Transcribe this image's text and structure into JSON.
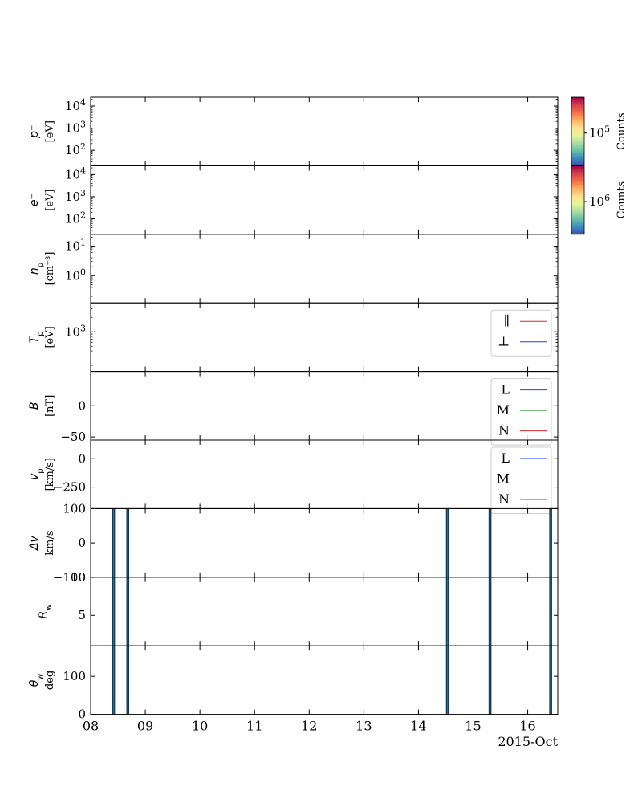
{
  "chart_data": {
    "type": "stacked-timeseries",
    "x_axis": {
      "ticks": [
        "08",
        "09",
        "10",
        "11",
        "12",
        "13",
        "14",
        "15",
        "16"
      ],
      "tick_days": [
        8,
        9,
        10,
        11,
        12,
        13,
        14,
        15,
        16
      ],
      "range_days": [
        8,
        16.55
      ],
      "date_label": "2015-Oct"
    },
    "panels": [
      {
        "id": "p",
        "ylabel": "p⁺",
        "yunit": "[eV]",
        "scale": "log",
        "ylim": [
          20,
          25000
        ],
        "ticks": [
          {
            "v": 100,
            "b": "10",
            "e": "2"
          },
          {
            "v": 1000,
            "b": "10",
            "e": "3"
          },
          {
            "v": 10000,
            "b": "10",
            "e": "4"
          }
        ],
        "colorbar": {
          "label": "Counts",
          "ticks": [
            {
              "b": "10",
              "e": "5"
            }
          ]
        }
      },
      {
        "id": "e",
        "ylabel": "e⁻",
        "yunit": "[eV]",
        "scale": "log",
        "ylim": [
          20,
          25000
        ],
        "ticks": [
          {
            "v": 100,
            "b": "10",
            "e": "2"
          },
          {
            "v": 1000,
            "b": "10",
            "e": "3"
          },
          {
            "v": 10000,
            "b": "10",
            "e": "4"
          }
        ],
        "colorbar": {
          "label": "Counts",
          "ticks": [
            {
              "b": "10",
              "e": "6"
            }
          ]
        }
      },
      {
        "id": "n",
        "ylabel": "n",
        "ysub": "p",
        "yunit": "[cm⁻³]",
        "scale": "log",
        "ylim": [
          0.12,
          25
        ],
        "ticks": [
          {
            "v": 1,
            "b": "10",
            "e": "0"
          },
          {
            "v": 10,
            "b": "10",
            "e": "1"
          }
        ]
      },
      {
        "id": "T",
        "ylabel": "T",
        "ysub": "p",
        "yunit": "[eV]",
        "scale": "log",
        "ylim": [
          150,
          4000
        ],
        "ticks": [
          {
            "v": 1000,
            "b": "10",
            "e": "3"
          }
        ],
        "legend": [
          {
            "label": "∥",
            "color": "#d62728"
          },
          {
            "label": "⊥",
            "color": "#1f3cff"
          }
        ]
      },
      {
        "id": "B",
        "ylabel": "B",
        "yunit": "[nT]",
        "scale": "linear",
        "ylim": [
          -55,
          55
        ],
        "ticks": [
          {
            "v": 0,
            "t": "0"
          },
          {
            "v": -50,
            "t": "−50"
          }
        ],
        "legend": [
          {
            "label": "L",
            "color": "#1f3cff"
          },
          {
            "label": "M",
            "color": "#2ca02c"
          },
          {
            "label": "N",
            "color": "#d62728"
          }
        ]
      },
      {
        "id": "v",
        "ylabel": "v",
        "ysub": "p",
        "yunit": "[km/s]",
        "scale": "linear",
        "ylim": [
          -440,
          165
        ],
        "ticks": [
          {
            "v": 0,
            "t": "0"
          },
          {
            "v": -250,
            "t": "−250"
          }
        ],
        "legend": [
          {
            "label": "L",
            "color": "#1f3cff"
          },
          {
            "label": "M",
            "color": "#2ca02c"
          },
          {
            "label": "N",
            "color": "#d62728"
          }
        ]
      },
      {
        "id": "dv",
        "ylabel": "Δv",
        "yunit": "km/s",
        "scale": "linear",
        "ylim": [
          -100,
          100
        ],
        "ticks": [
          {
            "v": 100,
            "t": "100"
          },
          {
            "v": 0,
            "t": "0"
          },
          {
            "v": -100,
            "t": "−100"
          }
        ],
        "bars": true
      },
      {
        "id": "Rw",
        "ylabel": "R",
        "ysub": "w",
        "yunit": "",
        "scale": "linear",
        "ylim": [
          1,
          10
        ],
        "ticks": [
          {
            "v": 10,
            "t": "10"
          },
          {
            "v": 5,
            "t": "5"
          }
        ],
        "bars": true
      },
      {
        "id": "thw",
        "ylabel": "θ",
        "ysub": "w",
        "yunit": "deg",
        "scale": "linear",
        "ylim": [
          0,
          180
        ],
        "ticks": [
          {
            "v": 100,
            "t": "100"
          },
          {
            "v": 0,
            "t": "0"
          }
        ],
        "bars": true
      }
    ],
    "event_bands": [
      {
        "start": 8.4,
        "end": 8.44
      },
      {
        "start": 8.66,
        "end": 8.7
      },
      {
        "start": 14.51,
        "end": 14.55
      },
      {
        "start": 15.29,
        "end": 15.33
      },
      {
        "start": 16.4,
        "end": 16.44
      }
    ],
    "band_colors": {
      "fill": "#1d4e78",
      "edge": "#0b2f4a",
      "inner": "#1f8a7a"
    },
    "colorbar_gradient": [
      "#3a4fa3",
      "#3d8bbf",
      "#66c2a5",
      "#abdda4",
      "#e6f598",
      "#fee08b",
      "#fdae61",
      "#f46d43",
      "#d53e4f",
      "#9e0142"
    ]
  }
}
